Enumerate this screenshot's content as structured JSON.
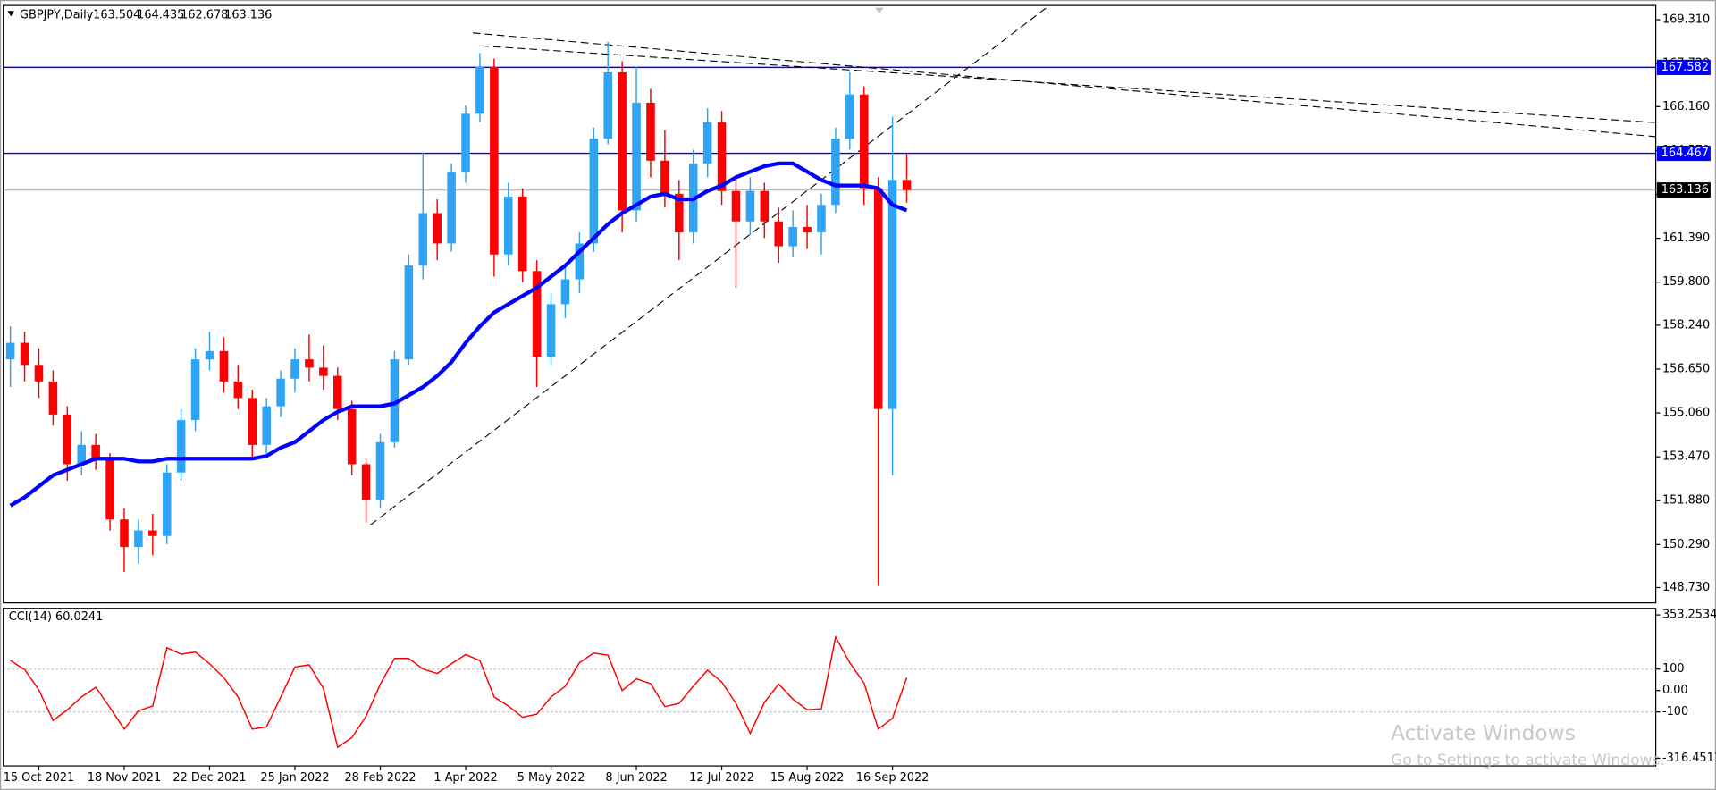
{
  "chart_data": [
    {
      "type": "candlestick",
      "title": "GBPJPY,Daily",
      "ohlc_label": [
        163.504,
        164.435,
        162.678,
        163.136
      ],
      "categories": [
        null,
        null,
        "15 Oct 2021",
        null,
        null,
        null,
        null,
        null,
        "18 Nov 2021",
        null,
        null,
        null,
        null,
        null,
        "22 Dec 2021",
        null,
        null,
        null,
        null,
        null,
        "25 Jan 2022",
        null,
        null,
        null,
        null,
        null,
        "28 Feb 2022",
        null,
        null,
        null,
        null,
        null,
        "1 Apr 2022",
        null,
        null,
        null,
        null,
        null,
        "5 May 2022",
        null,
        null,
        null,
        null,
        null,
        "8 Jun 2022",
        null,
        null,
        null,
        null,
        null,
        "12 Jul 2022",
        null,
        null,
        null,
        null,
        null,
        "15 Aug 2022",
        null,
        null,
        null,
        null,
        null,
        "16 Sep 2022",
        null
      ],
      "open": [
        157.0,
        157.6,
        156.8,
        156.2,
        155.0,
        153.2,
        153.9,
        153.4,
        151.2,
        150.2,
        150.8,
        150.6,
        152.9,
        154.8,
        157.0,
        157.3,
        156.2,
        155.6,
        153.9,
        155.3,
        156.3,
        157.0,
        156.7,
        156.4,
        155.2,
        153.2,
        151.9,
        154.0,
        157.0,
        160.4,
        162.3,
        161.2,
        163.8,
        165.9,
        167.6,
        160.8,
        162.9,
        160.2,
        157.1,
        159.0,
        159.9,
        161.2,
        165.0,
        167.4,
        162.4,
        166.3,
        164.2,
        163.0,
        161.6,
        164.1,
        165.6,
        163.1,
        162.0,
        163.1,
        162.0,
        161.1,
        161.8,
        161.6,
        162.6,
        165.0,
        166.6,
        163.2,
        155.2,
        163.504
      ],
      "high": [
        158.2,
        158.0,
        157.4,
        156.6,
        155.3,
        154.4,
        154.3,
        153.6,
        151.6,
        151.2,
        151.4,
        153.2,
        155.2,
        157.4,
        158.0,
        157.8,
        156.8,
        155.9,
        155.6,
        156.6,
        157.4,
        157.9,
        157.5,
        156.7,
        155.5,
        153.4,
        154.3,
        157.3,
        160.8,
        164.5,
        162.8,
        164.1,
        166.2,
        168.1,
        167.9,
        163.4,
        163.2,
        160.6,
        159.4,
        160.4,
        161.6,
        165.4,
        168.5,
        167.8,
        167.6,
        166.8,
        165.3,
        163.5,
        164.6,
        166.1,
        166.0,
        163.6,
        163.6,
        163.4,
        162.5,
        162.4,
        162.6,
        163.0,
        165.4,
        167.4,
        166.9,
        163.6,
        165.8,
        164.435
      ],
      "low": [
        156.0,
        156.2,
        155.6,
        154.6,
        152.6,
        152.8,
        153.0,
        150.8,
        149.3,
        149.6,
        149.9,
        150.3,
        152.6,
        154.4,
        156.6,
        155.8,
        155.2,
        153.4,
        153.6,
        154.9,
        155.8,
        156.2,
        155.9,
        154.8,
        152.8,
        151.1,
        151.6,
        153.8,
        156.8,
        159.9,
        160.6,
        160.9,
        163.4,
        165.6,
        160.0,
        160.4,
        159.8,
        156.0,
        156.8,
        158.5,
        159.4,
        160.9,
        164.8,
        161.6,
        162.0,
        163.6,
        162.5,
        160.6,
        161.2,
        163.6,
        162.6,
        159.6,
        161.5,
        161.4,
        160.5,
        160.7,
        161.0,
        160.8,
        162.3,
        164.6,
        162.6,
        148.8,
        152.8,
        162.678
      ],
      "close": [
        157.6,
        156.8,
        156.2,
        155.0,
        153.2,
        153.9,
        153.4,
        151.2,
        150.2,
        150.8,
        150.6,
        152.9,
        154.8,
        157.0,
        157.3,
        156.2,
        155.6,
        153.9,
        155.3,
        156.3,
        157.0,
        156.7,
        156.4,
        155.2,
        153.2,
        151.9,
        154.0,
        157.0,
        160.4,
        162.3,
        161.2,
        163.8,
        165.9,
        167.6,
        160.8,
        162.9,
        160.2,
        157.1,
        159.0,
        159.9,
        161.2,
        165.0,
        167.4,
        162.4,
        166.3,
        164.2,
        163.0,
        161.6,
        164.1,
        165.6,
        163.1,
        162.0,
        163.1,
        162.0,
        161.1,
        161.8,
        161.6,
        162.6,
        165.0,
        166.6,
        163.2,
        155.2,
        163.504,
        163.136
      ],
      "up_color": "#2fa4f5",
      "down_color": "#ff0000",
      "ma": {
        "color": "#0000ff",
        "values": [
          151.7,
          152.0,
          152.4,
          152.8,
          153.0,
          153.2,
          153.4,
          153.4,
          153.4,
          153.3,
          153.3,
          153.4,
          153.4,
          153.4,
          153.4,
          153.4,
          153.4,
          153.4,
          153.5,
          153.8,
          154.0,
          154.4,
          154.8,
          155.1,
          155.3,
          155.3,
          155.3,
          155.4,
          155.7,
          156.0,
          156.4,
          156.9,
          157.6,
          158.2,
          158.7,
          159.0,
          159.3,
          159.6,
          160.0,
          160.4,
          160.9,
          161.4,
          161.9,
          162.3,
          162.6,
          162.9,
          163.0,
          162.8,
          162.8,
          163.1,
          163.3,
          163.6,
          163.8,
          164.0,
          164.1,
          164.1,
          163.8,
          163.5,
          163.3,
          163.3,
          163.3,
          163.2,
          162.6,
          162.4
        ]
      },
      "trendlines": [
        {
          "x": [
            25.3,
            72.96
          ],
          "y": [
            151.0,
            169.8
          ]
        },
        {
          "x": [
            32.5,
            115.7
          ],
          "y": [
            168.83,
            165.07
          ]
        },
        {
          "x": [
            33.1,
            115.7
          ],
          "y": [
            168.36,
            165.58
          ]
        }
      ],
      "levels": [
        {
          "value": 167.582,
          "color": "#0000ff",
          "box": "#0000ff"
        },
        {
          "value": 164.467,
          "color": "#0000ff",
          "box": "#0000ff"
        },
        {
          "value": 163.136,
          "color": "#c0c0c0",
          "box": "#000000"
        }
      ],
      "xlim": [
        -0.5,
        115.65
      ],
      "ylim": [
        148.175,
        169.825
      ],
      "yticks": [
        {
          "value": 169.31,
          "label": "169.310"
        },
        {
          "value": 167.72,
          "label": "167.720"
        },
        {
          "value": 166.16,
          "label": "166.160"
        },
        {
          "value": 164.57,
          "label": "164.570"
        },
        {
          "value": 162.98,
          "label": "162.980"
        },
        {
          "value": 161.39,
          "label": "161.390"
        },
        {
          "value": 159.8,
          "label": "159.800"
        },
        {
          "value": 158.24,
          "label": "158.240"
        },
        {
          "value": 156.65,
          "label": "156.650"
        },
        {
          "value": 155.06,
          "label": "155.060"
        },
        {
          "value": 153.47,
          "label": "153.470"
        },
        {
          "value": 151.88,
          "label": "151.880"
        },
        {
          "value": 150.29,
          "label": "150.290"
        },
        {
          "value": 148.73,
          "label": "148.730"
        }
      ]
    },
    {
      "type": "line",
      "title": "CCI(14) 60.0241",
      "color": "#ff0000",
      "values": [
        140,
        98,
        3,
        -140,
        -90,
        -30,
        15,
        -80,
        -180,
        -95,
        -72,
        200,
        170,
        180,
        125,
        60,
        -30,
        -180,
        -170,
        -30,
        110,
        120,
        10,
        -265,
        -220,
        -120,
        30,
        150,
        150,
        100,
        80,
        125,
        168,
        140,
        -30,
        -72,
        -125,
        -110,
        -30,
        20,
        130,
        175,
        165,
        0,
        55,
        32,
        -75,
        -60,
        20,
        95,
        40,
        -60,
        -200,
        -55,
        30,
        -40,
        -90,
        -85,
        250,
        130,
        35,
        -180,
        -130,
        60.0241
      ],
      "ylim": [
        -316.4511,
        353.2534
      ],
      "yticks": [
        353.2534,
        100,
        {
          "value": 0,
          "label": "0.00"
        },
        -100,
        -316.4511
      ],
      "levels": [
        100,
        -100
      ]
    }
  ],
  "watermark": {
    "title": "Activate Windows",
    "text": "Go to Settings to activate Windows."
  }
}
